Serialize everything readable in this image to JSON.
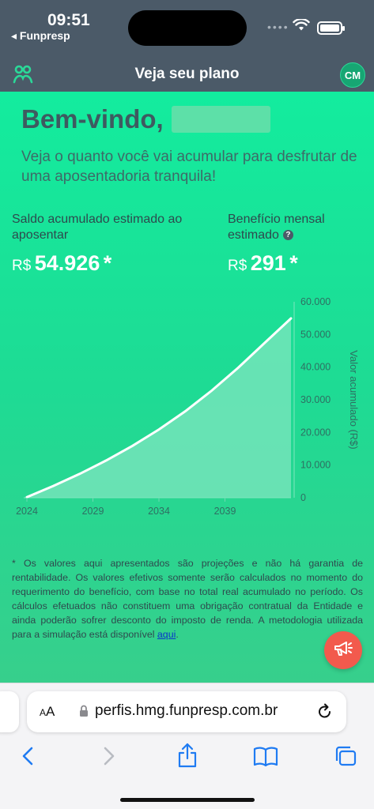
{
  "status_bar": {
    "time": "09:51",
    "back_app": "◂ Funpresp",
    "signal_icon": "signal-dots",
    "wifi_icon": "wifi",
    "battery_level": 1.0
  },
  "header": {
    "logo_icon": "funpresp-logo",
    "title": "Veja seu plano",
    "avatar_initials": "CM"
  },
  "welcome": {
    "greeting": "Bem-vindo,",
    "subtitle": "Veja o quanto você vai acumular para desfrutar de uma aposentadoria tranquila!"
  },
  "stats": {
    "balance": {
      "label": "Saldo acumulado estimado ao aposentar",
      "currency": "R$",
      "value": "54.926",
      "mark": "*"
    },
    "monthly": {
      "label": "Benefício mensal estimado",
      "currency": "R$",
      "value": "291",
      "mark": "*",
      "help": "?"
    }
  },
  "chart_data": {
    "type": "area",
    "x_ticks": [
      "2024",
      "2029",
      "2034",
      "2039"
    ],
    "y_ticks": [
      "0",
      "10.000",
      "20.000",
      "30.000",
      "40.000",
      "50.000",
      "60.000"
    ],
    "ylabel": "Valor acumulado (R$)",
    "ylim": [
      0,
      60000
    ],
    "xlim": [
      2024,
      2044
    ],
    "x": [
      2024,
      2026,
      2028,
      2030,
      2032,
      2034,
      2036,
      2038,
      2040,
      2042,
      2044
    ],
    "y": [
      200,
      3600,
      7300,
      11400,
      15900,
      20900,
      26500,
      32800,
      39800,
      47400,
      54926
    ],
    "line_color": "#ffffff",
    "fill_color": "#7fe6bf",
    "grid": false,
    "legend": "none"
  },
  "disclaimer": {
    "text": "* Os valores aqui apresentados são projeções e não há garantia de rentabilidade. Os valores efetivos somente serão calculados no momento do requerimento do benefício, com base no total real acumulado no período. Os cálculos efetuados não constituem uma obrigação contratual da Entidade e ainda poderão sofrer desconto do imposto de renda. A metodologia utilizada para a simulação está disponível ",
    "link": "aqui",
    "end": "."
  },
  "fab": {
    "icon": "megaphone-icon"
  },
  "browser": {
    "aa_label": "AA",
    "url": "perfis.hmg.funpresp.com.br",
    "toolbar": [
      "back",
      "forward",
      "share",
      "bookmarks",
      "tabs"
    ]
  },
  "colors": {
    "header_bg": "#4b5a68",
    "accent_green": "#13ec9e",
    "fab_red": "#f25a4d",
    "link_blue": "#0a36c9",
    "ios_blue": "#1f7bf2"
  }
}
